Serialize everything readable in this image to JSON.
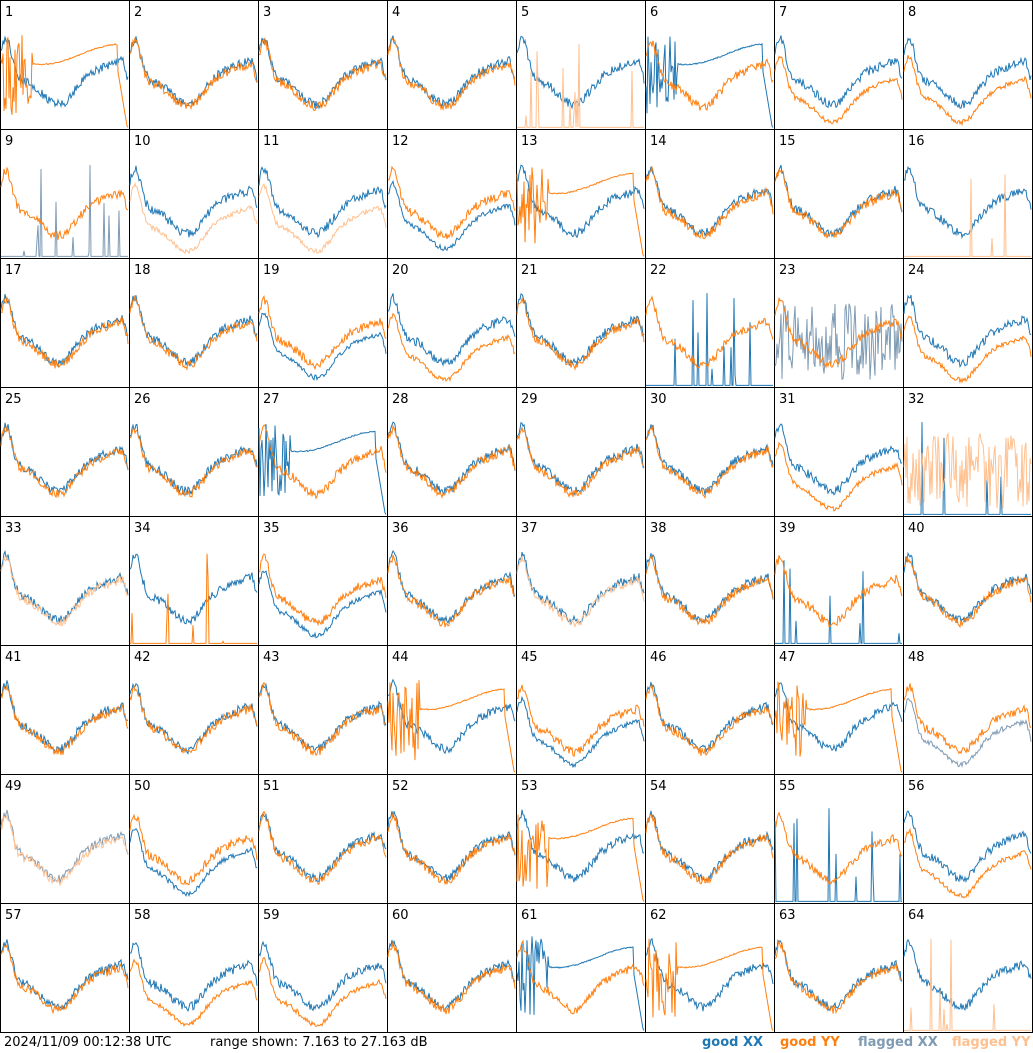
{
  "footer": {
    "timestamp": "2024/11/09 00:12:38 UTC",
    "range_text": "range shown: 7.163 to 27.163 dB"
  },
  "legend": {
    "good_xx": "good XX",
    "good_yy": "good YY",
    "flagged_xx": "flagged XX",
    "flagged_yy": "flagged YY"
  },
  "colors": {
    "good_xx": "#1f77b4",
    "good_yy": "#ff7f0e",
    "flagged_xx": "#7f9bb4",
    "flagged_yy": "#ffc08f",
    "panel_border": "#000000"
  },
  "chart_data": {
    "type": "line",
    "layout": "8x8 grid of small-multiple spectra",
    "y_range_db": [
      7.163,
      27.163
    ],
    "series": [
      "good XX",
      "good YY",
      "flagged XX",
      "flagged YY"
    ],
    "panels": [
      {
        "id": "1",
        "xx": "good",
        "yy": "good",
        "xx_shape": "normal",
        "yy_shape": "dropout"
      },
      {
        "id": "2",
        "xx": "good",
        "yy": "good",
        "xx_shape": "normal",
        "yy_shape": "normal"
      },
      {
        "id": "3",
        "xx": "good",
        "yy": "good",
        "xx_shape": "normal",
        "yy_shape": "normal"
      },
      {
        "id": "4",
        "xx": "good",
        "yy": "good",
        "xx_shape": "normal",
        "yy_shape": "normal"
      },
      {
        "id": "5",
        "xx": "good",
        "yy": "flagged",
        "xx_shape": "normal",
        "yy_shape": "dead"
      },
      {
        "id": "6",
        "xx": "good",
        "yy": "good",
        "xx_shape": "dropout",
        "yy_shape": "normal"
      },
      {
        "id": "7",
        "xx": "good",
        "yy": "good",
        "xx_shape": "normal",
        "yy_shape": "low"
      },
      {
        "id": "8",
        "xx": "good",
        "yy": "good",
        "xx_shape": "normal",
        "yy_shape": "low"
      },
      {
        "id": "9",
        "xx": "flagged",
        "yy": "good",
        "xx_shape": "dead",
        "yy_shape": "normal"
      },
      {
        "id": "10",
        "xx": "good",
        "yy": "flagged",
        "xx_shape": "normal",
        "yy_shape": "low"
      },
      {
        "id": "11",
        "xx": "good",
        "yy": "flagged",
        "xx_shape": "normal",
        "yy_shape": "low"
      },
      {
        "id": "12",
        "xx": "good",
        "yy": "good",
        "xx_shape": "low",
        "yy_shape": "normal"
      },
      {
        "id": "13",
        "xx": "good",
        "yy": "good",
        "xx_shape": "normal",
        "yy_shape": "dropout"
      },
      {
        "id": "14",
        "xx": "good",
        "yy": "good",
        "xx_shape": "normal",
        "yy_shape": "normal"
      },
      {
        "id": "15",
        "xx": "good",
        "yy": "good",
        "xx_shape": "normal",
        "yy_shape": "normal"
      },
      {
        "id": "16",
        "xx": "good",
        "yy": "flagged",
        "xx_shape": "normal",
        "yy_shape": "dead"
      },
      {
        "id": "17",
        "xx": "good",
        "yy": "good",
        "xx_shape": "normal",
        "yy_shape": "normal"
      },
      {
        "id": "18",
        "xx": "good",
        "yy": "good",
        "xx_shape": "normal",
        "yy_shape": "normal"
      },
      {
        "id": "19",
        "xx": "good",
        "yy": "good",
        "xx_shape": "low",
        "yy_shape": "normal"
      },
      {
        "id": "20",
        "xx": "good",
        "yy": "good",
        "xx_shape": "normal",
        "yy_shape": "low"
      },
      {
        "id": "21",
        "xx": "good",
        "yy": "good",
        "xx_shape": "normal",
        "yy_shape": "normal"
      },
      {
        "id": "22",
        "xx": "good",
        "yy": "good",
        "xx_shape": "dead",
        "yy_shape": "normal"
      },
      {
        "id": "23",
        "xx": "flagged",
        "yy": "good",
        "xx_shape": "noise",
        "yy_shape": "normal"
      },
      {
        "id": "24",
        "xx": "good",
        "yy": "good",
        "xx_shape": "normal",
        "yy_shape": "low"
      },
      {
        "id": "25",
        "xx": "good",
        "yy": "good",
        "xx_shape": "normal",
        "yy_shape": "normal"
      },
      {
        "id": "26",
        "xx": "good",
        "yy": "good",
        "xx_shape": "normal",
        "yy_shape": "normal"
      },
      {
        "id": "27",
        "xx": "good",
        "yy": "good",
        "xx_shape": "dropout",
        "yy_shape": "normal"
      },
      {
        "id": "28",
        "xx": "good",
        "yy": "good",
        "xx_shape": "normal",
        "yy_shape": "normal"
      },
      {
        "id": "29",
        "xx": "good",
        "yy": "good",
        "xx_shape": "normal",
        "yy_shape": "normal"
      },
      {
        "id": "30",
        "xx": "good",
        "yy": "good",
        "xx_shape": "normal",
        "yy_shape": "normal"
      },
      {
        "id": "31",
        "xx": "good",
        "yy": "good",
        "xx_shape": "normal",
        "yy_shape": "low"
      },
      {
        "id": "32",
        "xx": "good",
        "yy": "flagged",
        "xx_shape": "dead",
        "yy_shape": "noise"
      },
      {
        "id": "33",
        "xx": "good",
        "yy": "flagged",
        "xx_shape": "normal",
        "yy_shape": "normal"
      },
      {
        "id": "34",
        "xx": "good",
        "yy": "good",
        "xx_shape": "normal",
        "yy_shape": "dead"
      },
      {
        "id": "35",
        "xx": "good",
        "yy": "good",
        "xx_shape": "low",
        "yy_shape": "normal"
      },
      {
        "id": "36",
        "xx": "good",
        "yy": "good",
        "xx_shape": "normal",
        "yy_shape": "normal"
      },
      {
        "id": "37",
        "xx": "good",
        "yy": "flagged",
        "xx_shape": "normal",
        "yy_shape": "normal"
      },
      {
        "id": "38",
        "xx": "good",
        "yy": "good",
        "xx_shape": "normal",
        "yy_shape": "normal"
      },
      {
        "id": "39",
        "xx": "good",
        "yy": "good",
        "xx_shape": "dead",
        "yy_shape": "normal"
      },
      {
        "id": "40",
        "xx": "good",
        "yy": "good",
        "xx_shape": "normal",
        "yy_shape": "normal"
      },
      {
        "id": "41",
        "xx": "good",
        "yy": "good",
        "xx_shape": "normal",
        "yy_shape": "normal"
      },
      {
        "id": "42",
        "xx": "good",
        "yy": "good",
        "xx_shape": "normal",
        "yy_shape": "normal"
      },
      {
        "id": "43",
        "xx": "good",
        "yy": "good",
        "xx_shape": "normal",
        "yy_shape": "normal"
      },
      {
        "id": "44",
        "xx": "good",
        "yy": "good",
        "xx_shape": "normal",
        "yy_shape": "dropout"
      },
      {
        "id": "45",
        "xx": "good",
        "yy": "good",
        "xx_shape": "low",
        "yy_shape": "normal"
      },
      {
        "id": "46",
        "xx": "good",
        "yy": "good",
        "xx_shape": "normal",
        "yy_shape": "normal"
      },
      {
        "id": "47",
        "xx": "good",
        "yy": "good",
        "xx_shape": "normal",
        "yy_shape": "dropout"
      },
      {
        "id": "48",
        "xx": "flagged",
        "yy": "good",
        "xx_shape": "low",
        "yy_shape": "normal"
      },
      {
        "id": "49",
        "xx": "flagged",
        "yy": "flagged",
        "xx_shape": "normal",
        "yy_shape": "normal"
      },
      {
        "id": "50",
        "xx": "good",
        "yy": "good",
        "xx_shape": "low",
        "yy_shape": "normal"
      },
      {
        "id": "51",
        "xx": "good",
        "yy": "good",
        "xx_shape": "normal",
        "yy_shape": "normal"
      },
      {
        "id": "52",
        "xx": "good",
        "yy": "good",
        "xx_shape": "normal",
        "yy_shape": "normal"
      },
      {
        "id": "53",
        "xx": "good",
        "yy": "good",
        "xx_shape": "normal",
        "yy_shape": "dropout"
      },
      {
        "id": "54",
        "xx": "good",
        "yy": "good",
        "xx_shape": "normal",
        "yy_shape": "normal"
      },
      {
        "id": "55",
        "xx": "good",
        "yy": "good",
        "xx_shape": "dead",
        "yy_shape": "normal"
      },
      {
        "id": "56",
        "xx": "good",
        "yy": "good",
        "xx_shape": "normal",
        "yy_shape": "low"
      },
      {
        "id": "57",
        "xx": "good",
        "yy": "good",
        "xx_shape": "normal",
        "yy_shape": "normal"
      },
      {
        "id": "58",
        "xx": "good",
        "yy": "good",
        "xx_shape": "normal",
        "yy_shape": "low"
      },
      {
        "id": "59",
        "xx": "good",
        "yy": "good",
        "xx_shape": "normal",
        "yy_shape": "low"
      },
      {
        "id": "60",
        "xx": "good",
        "yy": "good",
        "xx_shape": "normal",
        "yy_shape": "normal"
      },
      {
        "id": "61",
        "xx": "good",
        "yy": "good",
        "xx_shape": "dropout",
        "yy_shape": "normal"
      },
      {
        "id": "62",
        "xx": "good",
        "yy": "good",
        "xx_shape": "normal",
        "yy_shape": "dropout"
      },
      {
        "id": "63",
        "xx": "good",
        "yy": "good",
        "xx_shape": "normal",
        "yy_shape": "normal"
      },
      {
        "id": "64",
        "xx": "good",
        "yy": "flagged",
        "xx_shape": "normal",
        "yy_shape": "dead"
      }
    ]
  }
}
